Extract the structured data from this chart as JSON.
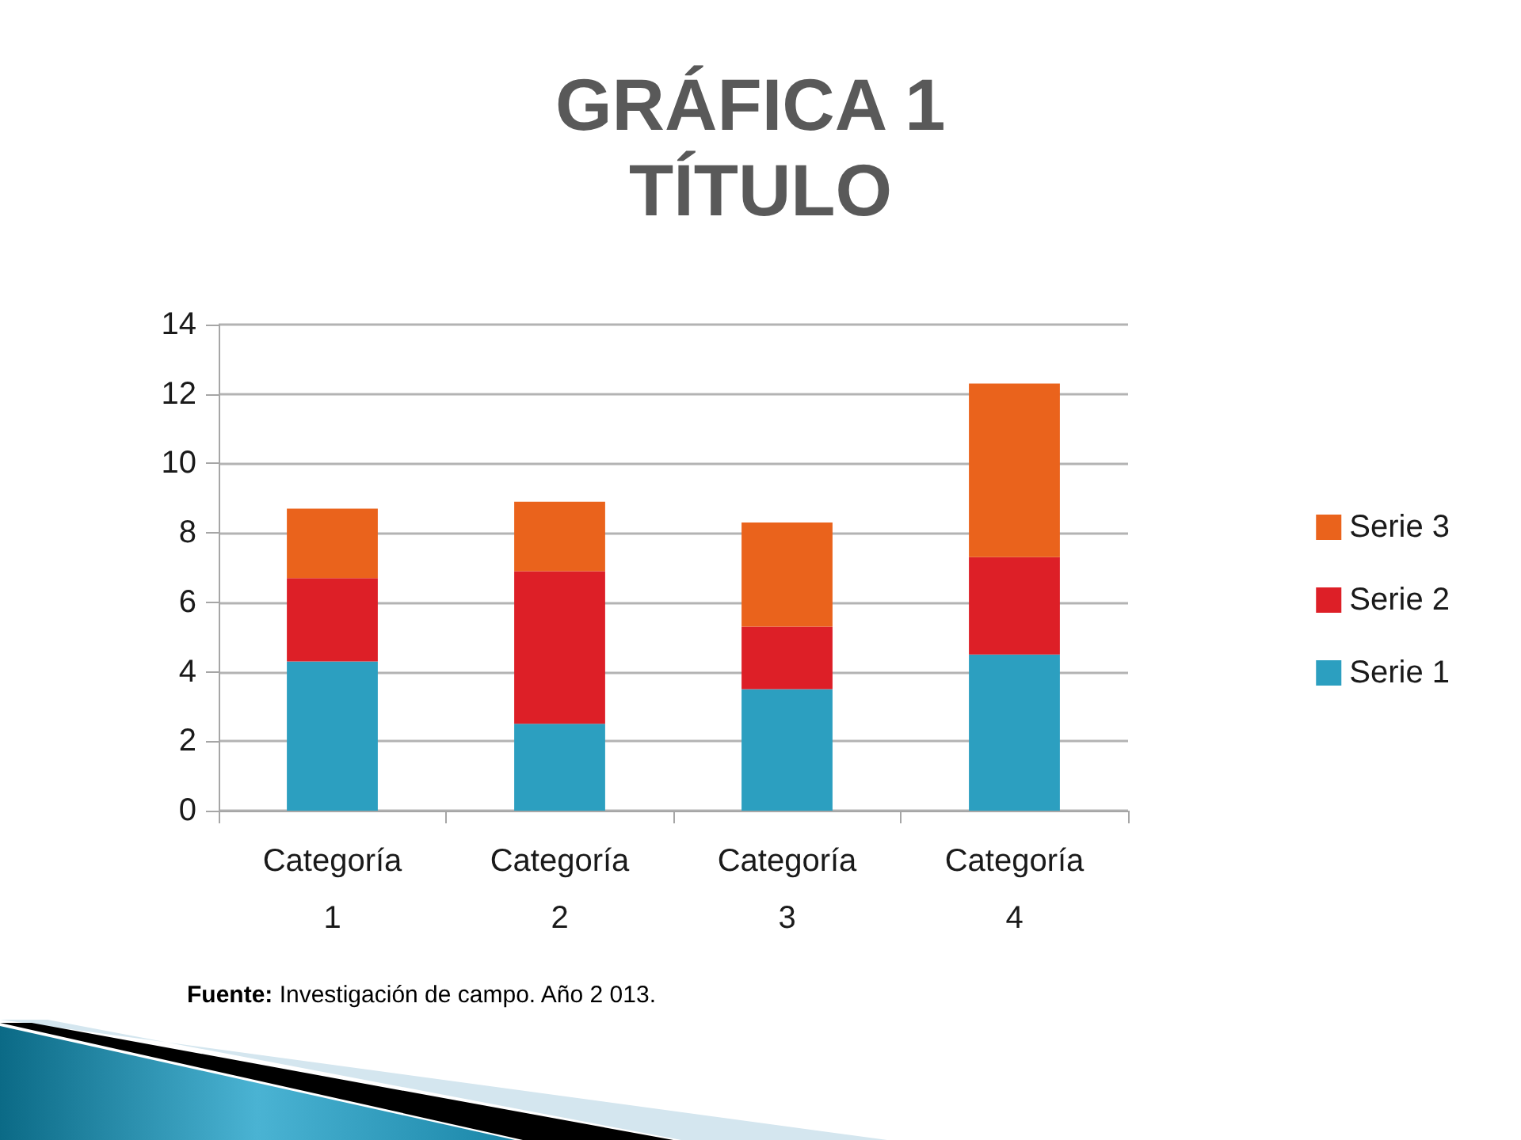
{
  "chart_data": {
    "type": "bar",
    "title": "GRÁFICA 1 TÍTULO",
    "categories": [
      "Categoría 1",
      "Categoría 2",
      "Categoría 3",
      "Categoría 4"
    ],
    "series": [
      {
        "name": "Serie 1",
        "color": "#2c9fc0",
        "values": [
          4.3,
          2.5,
          3.5,
          4.5
        ]
      },
      {
        "name": "Serie 2",
        "color": "#dd1f27",
        "values": [
          2.4,
          4.4,
          1.8,
          2.8
        ]
      },
      {
        "name": "Serie 3",
        "color": "#ea631c",
        "values": [
          2,
          2,
          3,
          5
        ]
      }
    ],
    "stacked": true,
    "ylim": [
      0,
      14
    ],
    "yticks": [
      0,
      2,
      4,
      6,
      8,
      10,
      12,
      14
    ],
    "grid": "y",
    "legend": "right",
    "annotations": [
      "Fuente: Investigación de campo. Año 2 013."
    ]
  }
}
